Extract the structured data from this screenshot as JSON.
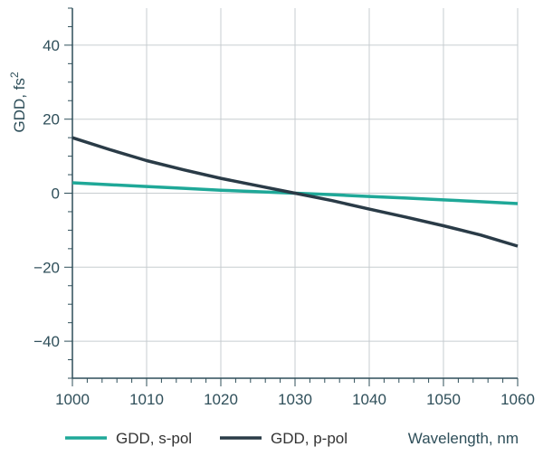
{
  "chart_data": {
    "type": "line",
    "title": "",
    "xlabel": "Wavelength, nm",
    "ylabel_base": "GDD, fs",
    "ylabel_exp": "2",
    "xlim": [
      1000,
      1060
    ],
    "ylim": [
      -50,
      50
    ],
    "x_ticks": [
      1000,
      1010,
      1020,
      1030,
      1040,
      1050,
      1060
    ],
    "x_tick_labels": [
      "1000",
      "1010",
      "1020",
      "1030",
      "1040",
      "1050",
      "1060"
    ],
    "y_ticks": [
      40,
      20,
      0,
      -20,
      -40
    ],
    "y_tick_labels": [
      "40",
      "20",
      "0",
      "−20",
      "−40"
    ],
    "y_minor_step": 5,
    "x_minor_step": 2,
    "grid": true,
    "legend_position": "bottom",
    "series": [
      {
        "name": "GDD, s-pol",
        "color": "#1fa898",
        "x": [
          1000,
          1005,
          1010,
          1015,
          1020,
          1025,
          1030,
          1035,
          1040,
          1045,
          1050,
          1055,
          1060
        ],
        "y": [
          2.8,
          2.3,
          1.8,
          1.3,
          0.8,
          0.4,
          0.0,
          -0.4,
          -0.9,
          -1.3,
          -1.8,
          -2.3,
          -2.8
        ]
      },
      {
        "name": "GDD, p-pol",
        "color": "#2a3b47",
        "x": [
          1000,
          1005,
          1010,
          1015,
          1020,
          1025,
          1030,
          1035,
          1040,
          1045,
          1050,
          1055,
          1060
        ],
        "y": [
          15.0,
          11.8,
          8.8,
          6.3,
          4.0,
          2.0,
          0.0,
          -2.0,
          -4.3,
          -6.5,
          -8.8,
          -11.3,
          -14.3
        ]
      }
    ]
  }
}
